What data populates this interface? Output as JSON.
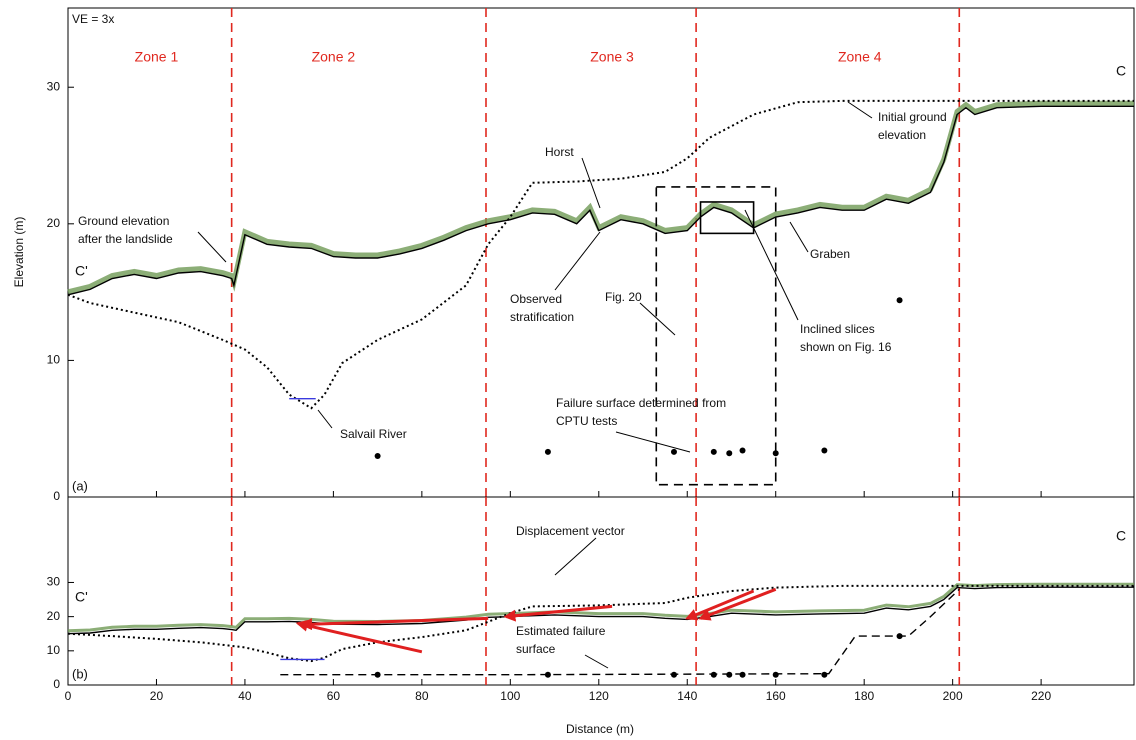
{
  "chart_data": [
    {
      "type": "line",
      "panel_label": "(a)",
      "note": "VE = 3x",
      "ylabel": "Elevation (m)",
      "xlim": [
        0,
        241
      ],
      "ylim": [
        0,
        35.8
      ],
      "yticks": [
        0,
        10,
        20,
        30
      ],
      "zone_boundaries": [
        37,
        94.5,
        142,
        201.5
      ],
      "boundary_color": "#e0281f",
      "zones": [
        "Zone 1",
        "Zone 2",
        "Zone 3",
        "Zone 4"
      ],
      "end_labels": [
        "C'",
        "C"
      ],
      "series": [
        {
          "x": [
            0,
            5,
            10,
            15,
            20,
            25,
            30,
            35,
            37,
            37.5,
            40,
            45,
            50,
            55,
            60,
            65,
            70,
            75,
            80,
            85,
            90,
            95,
            100,
            105,
            110,
            115,
            118,
            120,
            125,
            130,
            135,
            140,
            143,
            146,
            150,
            155,
            160,
            165,
            170,
            175,
            180,
            185,
            190,
            195,
            198,
            201,
            203,
            205,
            210,
            220,
            241
          ],
          "y": [
            14.8,
            15.2,
            16,
            16.3,
            16,
            16.4,
            16.5,
            16.2,
            16,
            15.5,
            19.2,
            18.5,
            18.3,
            18.2,
            17.6,
            17.5,
            17.5,
            17.8,
            18.2,
            18.8,
            19.5,
            20,
            20.3,
            20.8,
            20.7,
            20,
            21,
            19.5,
            20.3,
            20,
            19.3,
            19.5,
            20.5,
            21.2,
            20.8,
            19.7,
            20.5,
            20.8,
            21.2,
            21,
            21,
            21.8,
            21.5,
            22.3,
            24.5,
            28,
            28.5,
            28,
            28.5,
            28.6,
            28.6
          ],
          "color": "#000000",
          "style": "solid",
          "vegetation": "#6f9a55"
        },
        {
          "x": [
            0,
            5,
            15,
            25,
            35,
            40,
            45,
            50,
            55,
            58,
            62,
            70,
            80,
            90,
            95,
            100,
            105,
            115,
            125,
            135,
            140,
            145,
            155,
            165,
            175,
            200,
            241
          ],
          "y": [
            14.8,
            14.2,
            13.5,
            12.8,
            11.5,
            10.8,
            9.5,
            7.5,
            6.5,
            7.5,
            9.8,
            11.5,
            13,
            15.5,
            18.5,
            20.5,
            23,
            23.1,
            23.3,
            23.8,
            24.8,
            26.3,
            28,
            28.9,
            29,
            29,
            29
          ],
          "color": "#000000",
          "style": "dotted"
        },
        {
          "x": [
            50,
            56
          ],
          "y": [
            7.2,
            7.2
          ],
          "color": "#3a3adf",
          "style": "solid"
        }
      ],
      "points": {
        "x": [
          70,
          108.5,
          137,
          146,
          149.5,
          152.5,
          160,
          171,
          188
        ],
        "y": [
          3,
          3.3,
          3.3,
          3.3,
          3.2,
          3.4,
          3.2,
          3.4,
          14.4
        ]
      },
      "annotations": [
        {
          "text": [
            "Ground  elevation",
            "after the landslide"
          ]
        },
        {
          "text": [
            "Initial ground",
            "elevation"
          ]
        },
        {
          "text": [
            "Horst"
          ]
        },
        {
          "text": [
            "Observed",
            "stratification"
          ]
        },
        {
          "text": [
            "Graben"
          ]
        },
        {
          "text": [
            "Fig. 20"
          ]
        },
        {
          "text": [
            "Inclined slices",
            "shown on Fig. 16"
          ]
        },
        {
          "text": [
            "Failure surface  determined from",
            "CPTU tests"
          ]
        },
        {
          "text": [
            "Salvail River"
          ]
        }
      ]
    },
    {
      "type": "line",
      "panel_label": "(b)",
      "xlabel": "Distance (m)",
      "xlim": [
        0,
        241
      ],
      "ylim": [
        0,
        55
      ],
      "yticks": [
        0,
        10,
        20,
        30
      ],
      "xticks": [
        0,
        20,
        40,
        60,
        80,
        100,
        120,
        140,
        160,
        180,
        200,
        220
      ],
      "zone_boundaries": [
        37,
        94.5,
        142,
        201.5
      ],
      "boundary_color": "#e0281f",
      "end_labels": [
        "C'",
        "C"
      ],
      "series": [
        {
          "x": [
            0,
            5,
            10,
            15,
            20,
            25,
            30,
            35,
            37,
            38,
            40,
            45,
            50,
            55,
            60,
            70,
            80,
            90,
            95,
            100,
            110,
            120,
            130,
            135,
            140,
            145,
            150,
            160,
            170,
            180,
            185,
            190,
            195,
            198,
            201,
            205,
            210,
            220,
            241
          ],
          "y": [
            15,
            15.2,
            16,
            16.3,
            16.3,
            16.6,
            16.8,
            16.5,
            16.2,
            16,
            18.5,
            18.5,
            18.6,
            18.3,
            17.8,
            17.7,
            18,
            19,
            19.8,
            20,
            20.5,
            20,
            20,
            19.5,
            19.2,
            20,
            21,
            20.5,
            20.8,
            21,
            22.5,
            22,
            23,
            25,
            28.5,
            28.2,
            28.5,
            28.6,
            28.6
          ],
          "color": "#000000",
          "style": "solid",
          "vegetation": "#6f9a55"
        },
        {
          "x": [
            0,
            10,
            20,
            30,
            40,
            45,
            50,
            55,
            58,
            62,
            70,
            80,
            90,
            95,
            100,
            105,
            120,
            135,
            140,
            150,
            160,
            175,
            200,
            241
          ],
          "y": [
            15,
            14.3,
            13.5,
            12.5,
            11,
            9.5,
            7.8,
            7,
            8,
            10.5,
            12.5,
            14,
            16,
            18.5,
            21,
            23,
            23.3,
            24,
            25.5,
            27.5,
            28.5,
            29,
            29,
            29
          ],
          "color": "#000000",
          "style": "dotted"
        },
        {
          "x": [
            48,
            58
          ],
          "y": [
            7.5,
            7.5
          ],
          "color": "#3a3adf",
          "style": "solid"
        },
        {
          "x": [
            48,
            100,
            172,
            178,
            185,
            190,
            195,
            201.5
          ],
          "y": [
            3,
            3,
            3.3,
            14.3,
            14.3,
            14.3,
            20,
            28
          ],
          "color": "#000000",
          "style": "dashed"
        }
      ],
      "points": {
        "x": [
          70,
          108.5,
          137,
          146,
          149.5,
          152.5,
          160,
          171,
          188
        ],
        "y": [
          3,
          3,
          3,
          3,
          3,
          3,
          3,
          3,
          14.3
        ]
      },
      "vectors": {
        "color": "#e02020",
        "list": [
          {
            "from": [
              80,
              9.7
            ],
            "to": [
              52,
              18
            ]
          },
          {
            "from": [
              95,
              19.5
            ],
            "to": [
              53,
              17.7
            ]
          },
          {
            "from": [
              123,
              23
            ],
            "to": [
              99,
              20
            ]
          },
          {
            "from": [
              155,
              27.5
            ],
            "to": [
              140,
              19.5
            ]
          },
          {
            "from": [
              160,
              28
            ],
            "to": [
              143,
              19.5
            ]
          }
        ]
      },
      "annotations": [
        {
          "text": [
            "Displacement vector"
          ]
        },
        {
          "text": [
            "Estimated failure",
            "surface"
          ]
        }
      ]
    }
  ]
}
